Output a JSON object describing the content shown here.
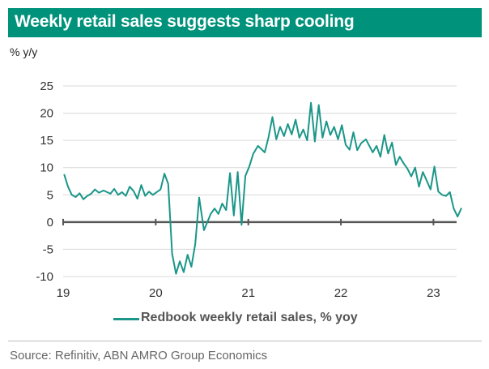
{
  "header": {
    "title": "Weekly retail sales suggests sharp cooling"
  },
  "unit_label": "% y/y",
  "footer": {
    "source": "Source: Refinitiv, ABN AMRO Group Economics"
  },
  "colors": {
    "accent": "#00927a",
    "series": "#1b9688"
  },
  "chart_data": {
    "type": "line",
    "title": "Weekly retail sales suggests sharp cooling",
    "ylabel": "% y/y",
    "xlabel": "",
    "ylim": [
      -10,
      25
    ],
    "xlim": [
      "2019-01",
      "2023-04"
    ],
    "yticks": [
      "25",
      "20",
      "15",
      "10",
      "5",
      "0",
      "-5",
      "-10"
    ],
    "xticks": [
      "19",
      "20",
      "21",
      "22",
      "23"
    ],
    "grid": true,
    "legend_position": "bottom",
    "series": [
      {
        "name": "Redbook weekly retail sales, % yoy",
        "x": [
          "2019-01",
          "2019-01",
          "2019-02",
          "2019-02",
          "2019-03",
          "2019-03",
          "2019-04",
          "2019-04",
          "2019-05",
          "2019-05",
          "2019-06",
          "2019-07",
          "2019-07",
          "2019-08",
          "2019-08",
          "2019-09",
          "2019-09",
          "2019-10",
          "2019-10",
          "2019-11",
          "2019-11",
          "2019-12",
          "2019-12",
          "2020-01",
          "2020-01",
          "2020-02",
          "2020-02",
          "2020-03",
          "2020-03",
          "2020-04",
          "2020-04",
          "2020-05",
          "2020-05",
          "2020-06",
          "2020-06",
          "2020-07",
          "2020-08",
          "2020-08",
          "2020-09",
          "2020-09",
          "2020-10",
          "2020-10",
          "2020-11",
          "2020-11",
          "2020-12",
          "2020-12",
          "2021-01",
          "2021-01",
          "2021-02",
          "2021-03",
          "2021-03",
          "2021-04",
          "2021-04",
          "2021-05",
          "2021-05",
          "2021-06",
          "2021-06",
          "2021-07",
          "2021-07",
          "2021-08",
          "2021-08",
          "2021-09",
          "2021-09",
          "2021-10",
          "2021-10",
          "2021-11",
          "2021-11",
          "2021-12",
          "2021-12",
          "2022-01",
          "2022-01",
          "2022-02",
          "2022-02",
          "2022-03",
          "2022-03",
          "2022-04",
          "2022-05",
          "2022-05",
          "2022-06",
          "2022-06",
          "2022-07",
          "2022-07",
          "2022-08",
          "2022-08",
          "2022-09",
          "2022-09",
          "2022-10",
          "2022-10",
          "2022-11",
          "2022-11",
          "2022-12",
          "2022-12",
          "2023-01",
          "2023-01",
          "2023-02",
          "2023-02",
          "2023-03",
          "2023-03",
          "2023-04",
          "2023-04"
        ],
        "values": [
          8.8,
          6.5,
          5.0,
          4.6,
          5.3,
          4.2,
          4.8,
          5.2,
          6.0,
          5.4,
          5.8,
          5.2,
          6.1,
          5.0,
          5.5,
          4.8,
          6.5,
          5.7,
          4.3,
          6.8,
          4.8,
          5.6,
          5.0,
          5.5,
          6.0,
          8.9,
          7.0,
          -5.8,
          -9.5,
          -7.2,
          -9.2,
          -6.0,
          -8.2,
          -4.0,
          4.5,
          -1.5,
          1.5,
          2.5,
          1.5,
          3.4,
          2.2,
          9.0,
          1.2,
          9.2,
          -0.5,
          8.5,
          10.2,
          12.5,
          14.0,
          12.8,
          15.6,
          19.3,
          15.2,
          17.5,
          15.8,
          18.0,
          16.1,
          18.8,
          15.5,
          17.0,
          15.0,
          21.9,
          14.8,
          21.5,
          15.5,
          18.5,
          16.0,
          17.5,
          15.2,
          17.8,
          14.2,
          13.3,
          16.5,
          13.2,
          14.5,
          15.2,
          12.8,
          14.0,
          12.0,
          16.0,
          12.6,
          14.6,
          10.5,
          12.0,
          10.8,
          9.8,
          8.4,
          10.0,
          6.5,
          9.2,
          7.6,
          6.0,
          10.2,
          5.6,
          5.0,
          4.8,
          5.5,
          2.5,
          1.0,
          2.6
        ]
      }
    ]
  }
}
